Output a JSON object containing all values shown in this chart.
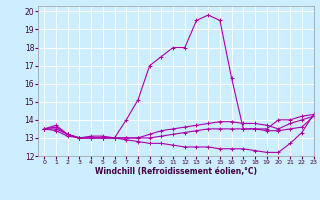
{
  "title": "",
  "xlabel": "Windchill (Refroidissement éolien,°C)",
  "xlim": [
    -0.5,
    23
  ],
  "ylim": [
    12,
    20.3
  ],
  "yticks": [
    12,
    13,
    14,
    15,
    16,
    17,
    18,
    19,
    20
  ],
  "xticks": [
    0,
    1,
    2,
    3,
    4,
    5,
    6,
    7,
    8,
    9,
    10,
    11,
    12,
    13,
    14,
    15,
    16,
    17,
    18,
    19,
    20,
    21,
    22,
    23
  ],
  "background_color": "#cceeff",
  "grid_color": "#ffffff",
  "line_color": "#aa00aa",
  "lines": [
    {
      "x": [
        0,
        1,
        2,
        3,
        4,
        5,
        6,
        7,
        8,
        9,
        10,
        11,
        12,
        13,
        14,
        15,
        16,
        17,
        18,
        19,
        20,
        21,
        22,
        23
      ],
      "y": [
        13.5,
        13.7,
        13.2,
        13.0,
        13.1,
        13.1,
        13.0,
        14.0,
        15.1,
        17.0,
        17.5,
        18.0,
        18.0,
        19.5,
        19.8,
        19.5,
        16.3,
        13.5,
        13.5,
        13.5,
        14.0,
        14.0,
        14.2,
        14.3
      ]
    },
    {
      "x": [
        0,
        1,
        2,
        3,
        4,
        5,
        6,
        7,
        8,
        9,
        10,
        11,
        12,
        13,
        14,
        15,
        16,
        17,
        18,
        19,
        20,
        21,
        22,
        23
      ],
      "y": [
        13.5,
        13.6,
        13.2,
        13.0,
        13.0,
        13.0,
        13.0,
        13.0,
        13.0,
        13.2,
        13.4,
        13.5,
        13.6,
        13.7,
        13.8,
        13.9,
        13.9,
        13.8,
        13.8,
        13.7,
        13.5,
        13.8,
        14.0,
        14.2
      ]
    },
    {
      "x": [
        0,
        1,
        2,
        3,
        4,
        5,
        6,
        7,
        8,
        9,
        10,
        11,
        12,
        13,
        14,
        15,
        16,
        17,
        18,
        19,
        20,
        21,
        22,
        23
      ],
      "y": [
        13.5,
        13.4,
        13.1,
        13.0,
        13.0,
        13.0,
        13.0,
        12.9,
        12.8,
        12.7,
        12.7,
        12.6,
        12.5,
        12.5,
        12.5,
        12.4,
        12.4,
        12.4,
        12.3,
        12.2,
        12.2,
        12.7,
        13.3,
        14.3
      ]
    },
    {
      "x": [
        0,
        1,
        2,
        3,
        4,
        5,
        6,
        7,
        8,
        9,
        10,
        11,
        12,
        13,
        14,
        15,
        16,
        17,
        18,
        19,
        20,
        21,
        22,
        23
      ],
      "y": [
        13.5,
        13.5,
        13.2,
        13.0,
        13.0,
        13.0,
        13.0,
        13.0,
        13.0,
        13.0,
        13.1,
        13.2,
        13.3,
        13.4,
        13.5,
        13.5,
        13.5,
        13.5,
        13.5,
        13.4,
        13.4,
        13.5,
        13.6,
        14.2
      ]
    }
  ]
}
